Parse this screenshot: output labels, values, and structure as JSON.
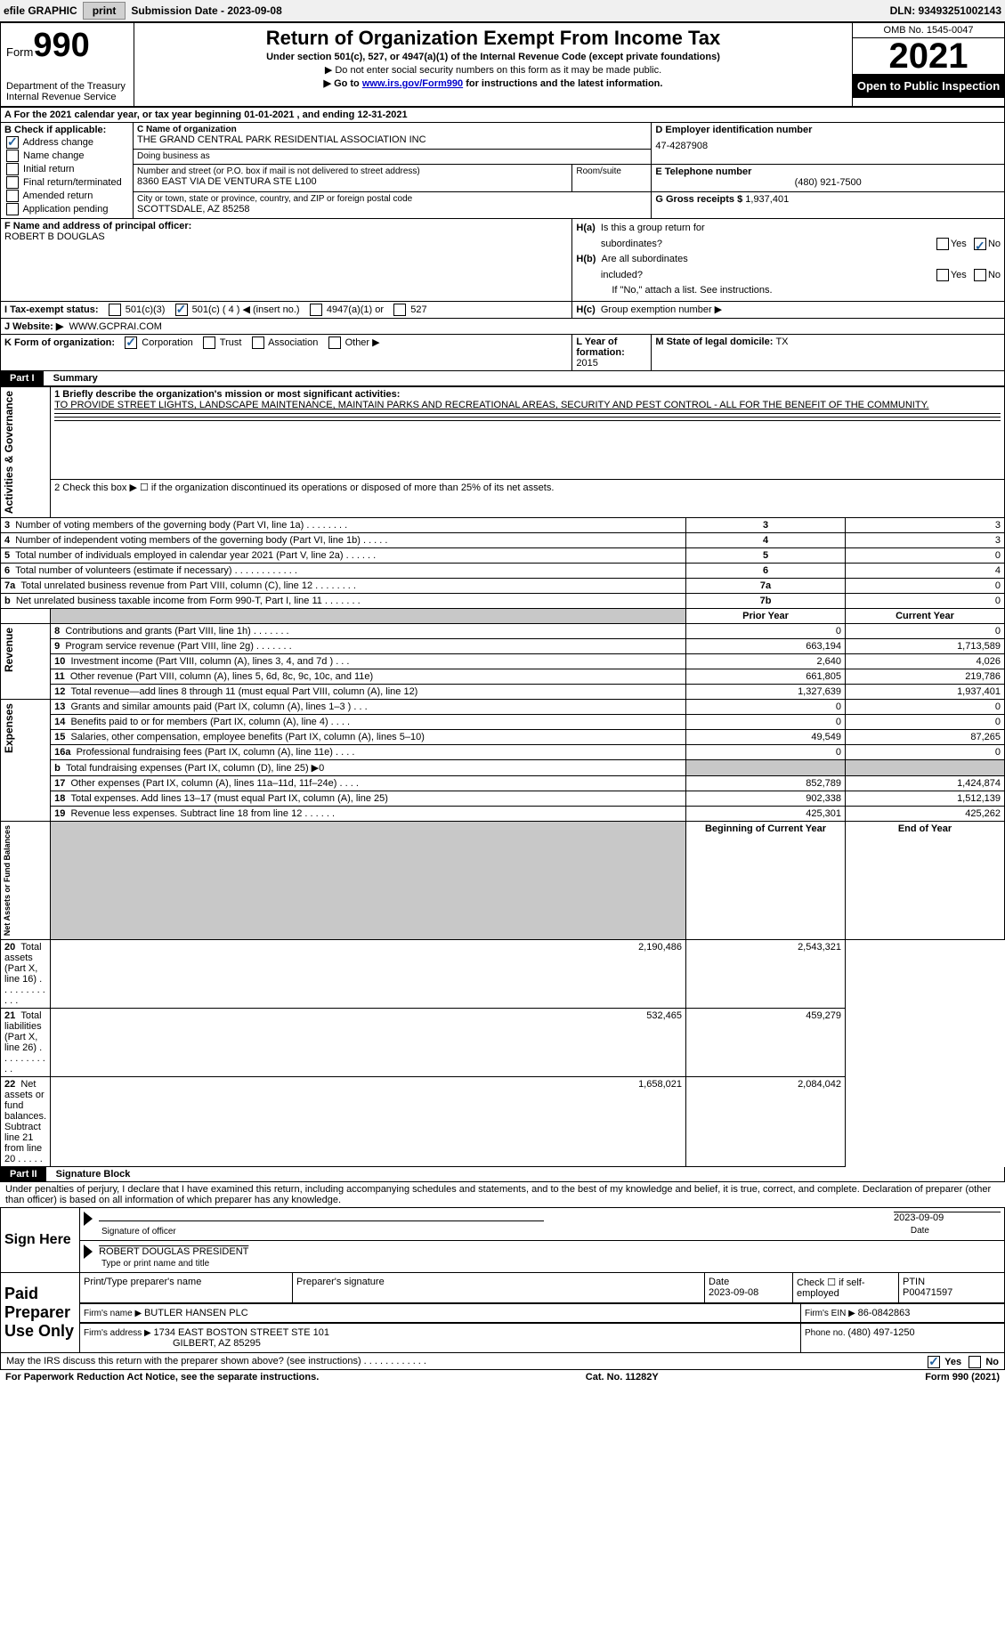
{
  "topbar": {
    "efile_label": "efile GRAPHIC",
    "print_btn": "print",
    "submission_label": "Submission Date - 2023-09-08",
    "dln": "DLN: 93493251002143"
  },
  "header": {
    "form_label": "Form",
    "form_number": "990",
    "dept": "Department of the Treasury\nInternal Revenue Service",
    "title": "Return of Organization Exempt From Income Tax",
    "subtitle": "Under section 501(c), 527, or 4947(a)(1) of the Internal Revenue Code (except private foundations)",
    "note1": "▶ Do not enter social security numbers on this form as it may be made public.",
    "note2_pre": "▶ Go to ",
    "note2_link": "www.irs.gov/Form990",
    "note2_post": " for instructions and the latest information.",
    "omb": "OMB No. 1545-0047",
    "year": "2021",
    "inspection": "Open to Public Inspection"
  },
  "period": {
    "line_a": "A For the 2021 calendar year, or tax year beginning 01-01-2021   , and ending 12-31-2021"
  },
  "section_b": {
    "heading": "B Check if applicable:",
    "items": [
      {
        "label": "Address change",
        "checked": true
      },
      {
        "label": "Name change",
        "checked": false
      },
      {
        "label": "Initial return",
        "checked": false
      },
      {
        "label": "Final return/terminated",
        "checked": false
      },
      {
        "label": "Amended return",
        "checked": false
      },
      {
        "label": "Application pending",
        "checked": false
      }
    ]
  },
  "section_c": {
    "name_label": "C Name of organization",
    "name": "THE GRAND CENTRAL PARK RESIDENTIAL ASSOCIATION INC",
    "dba_label": "Doing business as",
    "dba": "",
    "street_label": "Number and street (or P.O. box if mail is not delivered to street address)",
    "room_label": "Room/suite",
    "street": "8360 EAST VIA DE VENTURA STE L100",
    "city_label": "City or town, state or province, country, and ZIP or foreign postal code",
    "city": "SCOTTSDALE, AZ  85258"
  },
  "section_d": {
    "label": "D Employer identification number",
    "value": "47-4287908"
  },
  "section_e": {
    "label": "E Telephone number",
    "value": "(480) 921-7500"
  },
  "section_g": {
    "label": "G Gross receipts $ ",
    "value": "1,937,401"
  },
  "section_f": {
    "label": "F  Name and address of principal officer:",
    "value": "ROBERT B DOUGLAS"
  },
  "section_h": {
    "ha_label": "H(a)  Is this a group return for subordinates?",
    "hb_label": "H(b)  Are all subordinates included?",
    "hb_note": "If \"No,\" attach a list. See instructions.",
    "hc_label": "H(c)  Group exemption number ▶",
    "yes": "Yes",
    "no": "No"
  },
  "section_i": {
    "label": "I    Tax-exempt status:",
    "opts": [
      "501(c)(3)",
      "501(c) ( 4 ) ◀ (insert no.)",
      "4947(a)(1) or",
      "527"
    ]
  },
  "section_j": {
    "label": "J    Website: ▶",
    "value": "WWW.GCPRAI.COM"
  },
  "section_k": {
    "label": "K Form of organization:",
    "opts": [
      "Corporation",
      "Trust",
      "Association",
      "Other ▶"
    ]
  },
  "section_l": {
    "label": "L Year of formation: ",
    "value": "2015"
  },
  "section_m": {
    "label": "M State of legal domicile: ",
    "value": "TX"
  },
  "part1": {
    "header": "Part I",
    "title": "Summary",
    "line1_label": "1  Briefly describe the organization's mission or most significant activities:",
    "line1_text": "TO PROVIDE STREET LIGHTS, LANDSCAPE MAINTENANCE, MAINTAIN PARKS AND RECREATIONAL AREAS, SECURITY AND PEST CONTROL - ALL FOR THE BENEFIT OF THE COMMUNITY.",
    "line2": "2   Check this box ▶ ☐ if the organization discontinued its operations or disposed of more than 25% of its net assets.",
    "rows_ag": [
      {
        "n": "3",
        "t": "Number of voting members of the governing body (Part VI, line 1a)   .    .    .    .    .    .    .    .",
        "box": "3",
        "v": "3"
      },
      {
        "n": "4",
        "t": "Number of independent voting members of the governing body (Part VI, line 1b)    .    .    .    .    .",
        "box": "4",
        "v": "3"
      },
      {
        "n": "5",
        "t": "Total number of individuals employed in calendar year 2021 (Part V, line 2a)   .    .    .    .    .    .",
        "box": "5",
        "v": "0"
      },
      {
        "n": "6",
        "t": "Total number of volunteers (estimate if necessary)    .    .    .    .    .    .    .    .    .    .    .    .",
        "box": "6",
        "v": "4"
      },
      {
        "n": "7a",
        "t": "Total unrelated business revenue from Part VIII, column (C), line 12   .    .    .    .    .    .    .    .",
        "box": "7a",
        "v": "0"
      },
      {
        "n": " b",
        "t": "Net unrelated business taxable income from Form 990-T, Part I, line 11   .    .    .    .    .    .    .",
        "box": "7b",
        "v": "0"
      }
    ],
    "col_prior": "Prior Year",
    "col_current": "Current Year",
    "rows_rev": [
      {
        "n": "8",
        "t": "Contributions and grants (Part VIII, line 1h)   .    .    .    .    .    .    .",
        "p": "0",
        "c": "0"
      },
      {
        "n": "9",
        "t": "Program service revenue (Part VIII, line 2g)    .    .    .    .    .    .    .",
        "p": "663,194",
        "c": "1,713,589"
      },
      {
        "n": "10",
        "t": "Investment income (Part VIII, column (A), lines 3, 4, and 7d )   .    .    .",
        "p": "2,640",
        "c": "4,026"
      },
      {
        "n": "11",
        "t": "Other revenue (Part VIII, column (A), lines 5, 6d, 8c, 9c, 10c, and 11e)",
        "p": "661,805",
        "c": "219,786"
      },
      {
        "n": "12",
        "t": "Total revenue—add lines 8 through 11 (must equal Part VIII, column (A), line 12)",
        "p": "1,327,639",
        "c": "1,937,401"
      }
    ],
    "rows_exp": [
      {
        "n": "13",
        "t": "Grants and similar amounts paid (Part IX, column (A), lines 1–3 )   .    .    .",
        "p": "0",
        "c": "0"
      },
      {
        "n": "14",
        "t": "Benefits paid to or for members (Part IX, column (A), line 4)   .    .    .    .",
        "p": "0",
        "c": "0"
      },
      {
        "n": "15",
        "t": "Salaries, other compensation, employee benefits (Part IX, column (A), lines 5–10)",
        "p": "49,549",
        "c": "87,265"
      },
      {
        "n": "16a",
        "t": "Professional fundraising fees (Part IX, column (A), line 11e)   .    .    .    .",
        "p": "0",
        "c": "0"
      },
      {
        "n": "b",
        "t": "Total fundraising expenses (Part IX, column (D), line 25) ▶0",
        "p": "",
        "c": "",
        "gray": true
      },
      {
        "n": "17",
        "t": "Other expenses (Part IX, column (A), lines 11a–11d, 11f–24e)   .    .    .    .",
        "p": "852,789",
        "c": "1,424,874"
      },
      {
        "n": "18",
        "t": "Total expenses. Add lines 13–17 (must equal Part IX, column (A), line 25)",
        "p": "902,338",
        "c": "1,512,139"
      },
      {
        "n": "19",
        "t": "Revenue less expenses. Subtract line 18 from line 12  .    .    .    .    .    .",
        "p": "425,301",
        "c": "425,262"
      }
    ],
    "col_begin": "Beginning of Current Year",
    "col_end": "End of Year",
    "rows_na": [
      {
        "n": "20",
        "t": "Total assets (Part X, line 16)  .    .    .    .    .    .    .    .    .    .    .    .",
        "p": "2,190,486",
        "c": "2,543,321"
      },
      {
        "n": "21",
        "t": "Total liabilities (Part X, line 26)  .    .    .    .    .    .    .    .    .    .    .",
        "p": "532,465",
        "c": "459,279"
      },
      {
        "n": "22",
        "t": "Net assets or fund balances. Subtract line 21 from line 20   .    .    .    .    .",
        "p": "1,658,021",
        "c": "2,084,042"
      }
    ],
    "side_labels": {
      "ag": "Activities & Governance",
      "rev": "Revenue",
      "exp": "Expenses",
      "na": "Net Assets or Fund Balances"
    }
  },
  "part2": {
    "header": "Part II",
    "title": "Signature Block",
    "perjury": "Under penalties of perjury, I declare that I have examined this return, including accompanying schedules and statements, and to the best of my knowledge and belief, it is true, correct, and complete. Declaration of preparer (other than officer) is based on all information of which preparer has any knowledge.",
    "sign_here": "Sign Here",
    "sig_officer": "Signature of officer",
    "sig_date": "2023-09-09",
    "date_label": "Date",
    "officer_name": "ROBERT DOUGLAS  PRESIDENT",
    "type_label": "Type or print name and title",
    "paid_label": "Paid Preparer Use Only",
    "prep_name_label": "Print/Type preparer's name",
    "prep_sig_label": "Preparer's signature",
    "prep_date_label": "Date",
    "prep_date": "2023-09-08",
    "check_if": "Check ☐ if self-employed",
    "ptin_label": "PTIN",
    "ptin": "P00471597",
    "firm_name_label": "Firm's name    ▶ ",
    "firm_name": "BUTLER HANSEN PLC",
    "firm_ein_label": "Firm's EIN ▶ ",
    "firm_ein": "86-0842863",
    "firm_addr_label": "Firm's address ▶ ",
    "firm_addr1": "1734 EAST BOSTON STREET STE 101",
    "firm_addr2": "GILBERT, AZ  85295",
    "phone_label": "Phone no. ",
    "phone": "(480) 497-1250",
    "discuss": "May the IRS discuss this return with the preparer shown above? (see instructions)   .    .    .    .    .    .    .    .    .    .    .    ."
  },
  "footer": {
    "left": "For Paperwork Reduction Act Notice, see the separate instructions.",
    "center": "Cat. No. 11282Y",
    "right": "Form 990 (2021)"
  }
}
